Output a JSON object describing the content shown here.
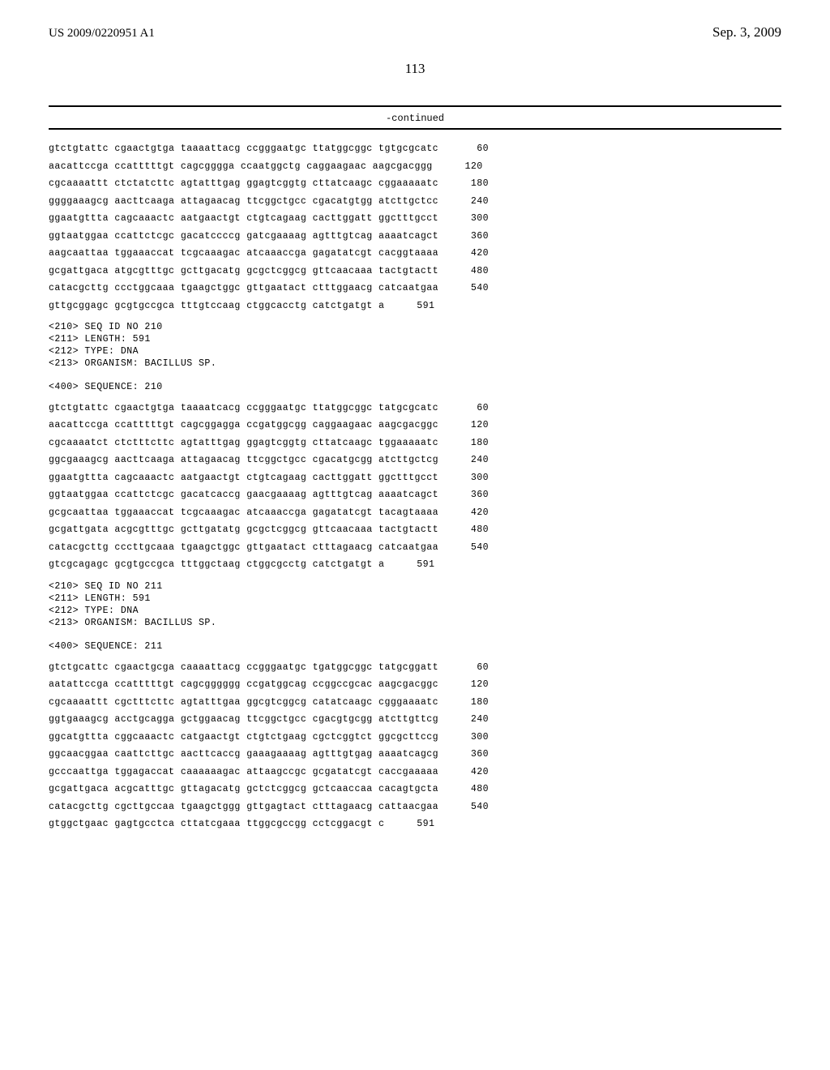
{
  "header": {
    "pub_number": "US 2009/0220951 A1",
    "pub_date": "Sep. 3, 2009",
    "page_number": "113"
  },
  "continued_label": "-continued",
  "sequences": [
    {
      "lines": [
        {
          "text": "gtctgtattc cgaactgtga taaaattacg ccgggaatgc ttatggcggc tgtgcgcatc",
          "num": "60"
        },
        {
          "text": "aacattccga ccatttttgt cagcgggga ccaatggctg caggaagaac aagcgacggg",
          "num": "120"
        },
        {
          "text": "cgcaaaattt ctctatcttc agtatttgag ggagtcggtg cttatcaagc cggaaaaatc",
          "num": "180"
        },
        {
          "text": "ggggaaagcg aacttcaaga attagaacag ttcggctgcc cgacatgtgg atcttgctcc",
          "num": "240"
        },
        {
          "text": "ggaatgttta cagcaaactc aatgaactgt ctgtcagaag cacttggatt ggctttgcct",
          "num": "300"
        },
        {
          "text": "ggtaatggaa ccattctcgc gacatccccg gatcgaaaag agtttgtcag aaaatcagct",
          "num": "360"
        },
        {
          "text": "aagcaattaa tggaaaccat tcgcaaagac atcaaaccga gagatatcgt cacggtaaaa",
          "num": "420"
        },
        {
          "text": "gcgattgaca atgcgtttgc gcttgacatg gcgctcggcg gttcaacaaa tactgtactt",
          "num": "480"
        },
        {
          "text": "catacgcttg ccctggcaaa tgaagctggc gttgaatact ctttggaacg catcaatgaa",
          "num": "540"
        },
        {
          "text": "gttgcggagc gcgtgccgca tttgtccaag ctggcacctg catctgatgt a",
          "num": "591"
        }
      ]
    },
    {
      "meta": [
        "<210> SEQ ID NO 210",
        "<211> LENGTH: 591",
        "<212> TYPE: DNA",
        "<213> ORGANISM: BACILLUS SP."
      ],
      "label": "<400> SEQUENCE: 210",
      "lines": [
        {
          "text": "gtctgtattc cgaactgtga taaaatcacg ccgggaatgc ttatggcggc tatgcgcatc",
          "num": "60"
        },
        {
          "text": "aacattccga ccatttttgt cagcggagga ccgatggcgg caggaagaac aagcgacggc",
          "num": "120"
        },
        {
          "text": "cgcaaaatct ctctttcttc agtatttgag ggagtcggtg cttatcaagc tggaaaaatc",
          "num": "180"
        },
        {
          "text": "ggcgaaagcg aacttcaaga attagaacag ttcggctgcc cgacatgcgg atcttgctcg",
          "num": "240"
        },
        {
          "text": "ggaatgttta cagcaaactc aatgaactgt ctgtcagaag cacttggatt ggctttgcct",
          "num": "300"
        },
        {
          "text": "ggtaatggaa ccattctcgc gacatcaccg gaacgaaaag agtttgtcag aaaatcagct",
          "num": "360"
        },
        {
          "text": "gcgcaattaa tggaaaccat tcgcaaagac atcaaaccga gagatatcgt tacagtaaaa",
          "num": "420"
        },
        {
          "text": "gcgattgata acgcgtttgc gcttgatatg gcgctcggcg gttcaacaaa tactgtactt",
          "num": "480"
        },
        {
          "text": "catacgcttg cccttgcaaa tgaagctggc gttgaatact ctttagaacg catcaatgaa",
          "num": "540"
        },
        {
          "text": "gtcgcagagc gcgtgccgca tttggctaag ctggcgcctg catctgatgt a",
          "num": "591"
        }
      ]
    },
    {
      "meta": [
        "<210> SEQ ID NO 211",
        "<211> LENGTH: 591",
        "<212> TYPE: DNA",
        "<213> ORGANISM: BACILLUS SP."
      ],
      "label": "<400> SEQUENCE: 211",
      "lines": [
        {
          "text": "gtctgcattc cgaactgcga caaaattacg ccgggaatgc tgatggcggc tatgcggatt",
          "num": "60"
        },
        {
          "text": "aatattccga ccatttttgt cagcgggggg ccgatggcag ccggccgcac aagcgacggc",
          "num": "120"
        },
        {
          "text": "cgcaaaattt cgctttcttc agtatttgaa ggcgtcggcg catatcaagc cgggaaaatc",
          "num": "180"
        },
        {
          "text": "ggtgaaagcg acctgcagga gctggaacag ttcggctgcc cgacgtgcgg atcttgttcg",
          "num": "240"
        },
        {
          "text": "ggcatgttta cggcaaactc catgaactgt ctgtctgaag cgctcggtct ggcgcttccg",
          "num": "300"
        },
        {
          "text": "ggcaacggaa caattcttgc aacttcaccg gaaagaaaag agtttgtgag aaaatcagcg",
          "num": "360"
        },
        {
          "text": "gcccaattga tggagaccat caaaaaagac attaagccgc gcgatatcgt caccgaaaaa",
          "num": "420"
        },
        {
          "text": "gcgattgaca acgcatttgc gttagacatg gctctcggcg gctcaaccaa cacagtgcta",
          "num": "480"
        },
        {
          "text": "catacgcttg cgcttgccaa tgaagctggg gttgagtact ctttagaacg cattaacgaa",
          "num": "540"
        },
        {
          "text": "gtggctgaac gagtgcctca cttatcgaaa ttggcgccgg cctcggacgt c",
          "num": "591"
        }
      ]
    }
  ],
  "style": {
    "background_color": "#ffffff",
    "text_color": "#000000",
    "mono_font": "Courier New",
    "serif_font": "Times New Roman",
    "seq_fontsize": 11.5,
    "header_fontsize_small": 15,
    "header_fontsize_large": 17,
    "page_fontsize": 17
  }
}
